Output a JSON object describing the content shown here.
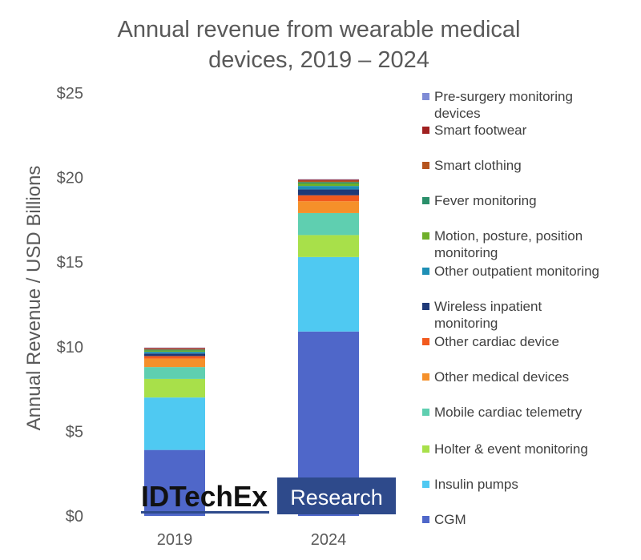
{
  "chart_data": {
    "type": "bar",
    "stacked": true,
    "title_lines": [
      "Annual revenue from wearable medical",
      "devices, 2019 – 2024"
    ],
    "ylabel": "Annual Revenue / USD Billions",
    "xlabel": "",
    "categories": [
      "2019",
      "2024"
    ],
    "ylim": [
      0,
      25
    ],
    "y_ticks": [
      "$0",
      "$5",
      "$10",
      "$15",
      "$20",
      "$25"
    ],
    "y_tick_values": [
      0,
      5,
      10,
      15,
      20,
      25
    ],
    "grid": false,
    "legend_position": "right",
    "series": [
      {
        "name": "CGM",
        "color": "#4F67C9",
        "values": [
          3.9,
          10.9
        ]
      },
      {
        "name": "Insulin pumps",
        "color": "#4FC9F2",
        "values": [
          3.1,
          4.4
        ]
      },
      {
        "name": "Holter & event monitoring",
        "color": "#A8E04A",
        "values": [
          1.1,
          1.3
        ]
      },
      {
        "name": "Mobile cardiac telemetry",
        "color": "#5FCFB0",
        "values": [
          0.7,
          1.3
        ]
      },
      {
        "name": "Other medical devices",
        "color": "#F5902A",
        "values": [
          0.5,
          0.7
        ]
      },
      {
        "name": "Other cardiac device",
        "color": "#F25A1E",
        "values": [
          0.15,
          0.35
        ]
      },
      {
        "name": "Wireless inpatient monitoring",
        "color": "#1F3A78",
        "values": [
          0.15,
          0.35
        ]
      },
      {
        "name": "Other outpatient monitoring",
        "color": "#1E8FB5",
        "values": [
          0.1,
          0.2
        ]
      },
      {
        "name": "Motion, posture, position monitoring",
        "color": "#6FAF2A",
        "values": [
          0.08,
          0.15
        ]
      },
      {
        "name": "Fever monitoring",
        "color": "#2A8F6A",
        "values": [
          0.05,
          0.08
        ]
      },
      {
        "name": "Smart clothing",
        "color": "#B5541E",
        "values": [
          0.05,
          0.08
        ]
      },
      {
        "name": "Smart footwear",
        "color": "#A02020",
        "values": [
          0.05,
          0.07
        ]
      },
      {
        "name": "Pre-surgery monitoring devices",
        "color": "#7F8CD6",
        "values": [
          0.02,
          0.02
        ]
      }
    ]
  },
  "logo": {
    "brand_text": "IDTechEx",
    "research_text": "Research",
    "research_bg": "#2E4A8B"
  }
}
